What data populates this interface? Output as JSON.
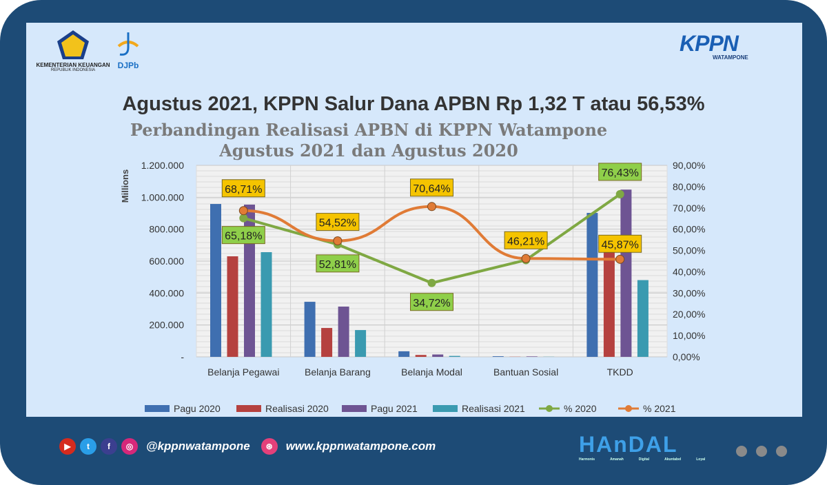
{
  "logos": {
    "kemenkeu_line1": "KEMENTERIAN KEUANGAN",
    "kemenkeu_line2": "REPUBLIK INDONESIA",
    "djpb": "DJPb",
    "kppn": "KPPN",
    "kppn_sub": "WATAMPONE",
    "handal": "HAnDAL",
    "handal_tags": [
      "Harmonis",
      "Amanah",
      "Digital",
      "Akuntabel",
      "Loyal"
    ]
  },
  "headline": "Agustus 2021, KPPN Salur Dana APBN Rp 1,32 T atau 56,53%",
  "footer": {
    "social_handle": "@kppnwatampone",
    "website": "www.kppnwatampone.com",
    "icons": [
      "youtube-icon",
      "twitter-icon",
      "facebook-icon",
      "instagram-icon",
      "dribbble-icon"
    ]
  },
  "chart_data": {
    "type": "bar",
    "title": "Perbandingan Realisasi APBN di KPPN Watampone",
    "subtitle": "Agustus 2021 dan Agustus 2020",
    "ylabel": "Millions",
    "ylim": [
      0,
      1200000
    ],
    "y2lim": [
      0,
      90
    ],
    "yticks": [
      "-",
      "200.000",
      "400.000",
      "600.000",
      "800.000",
      "1.000.000",
      "1.200.000"
    ],
    "y2ticks": [
      "0,00%",
      "10,00%",
      "20,00%",
      "30,00%",
      "40,00%",
      "50,00%",
      "60,00%",
      "70,00%",
      "80,00%",
      "90,00%"
    ],
    "categories": [
      "Belanja Pegawai",
      "Belanja Barang",
      "Belanja Modal",
      "Bantuan Sosial",
      "TKDD"
    ],
    "series": [
      {
        "name": "Pagu 2020",
        "kind": "bar",
        "color": "#3f6fb0",
        "values": [
          958000,
          345000,
          35000,
          4000,
          902000
        ]
      },
      {
        "name": "Realisasi 2020",
        "kind": "bar",
        "color": "#b5413f",
        "values": [
          630000,
          181000,
          12000,
          1000,
          689000
        ]
      },
      {
        "name": "Pagu 2021",
        "kind": "bar",
        "color": "#6e5493",
        "values": [
          954000,
          315000,
          15000,
          3000,
          1048000
        ]
      },
      {
        "name": "Realisasi 2021",
        "kind": "bar",
        "color": "#3a9ab0",
        "values": [
          656000,
          168000,
          6000,
          1000,
          481000
        ]
      },
      {
        "name": "% 2020",
        "kind": "line",
        "axis": "right",
        "color": "#7fa843",
        "values": [
          65.18,
          52.81,
          34.72,
          45.5,
          76.43
        ],
        "labels": [
          "65,18%",
          "52,81%",
          "34,72%",
          "",
          "76,43%"
        ]
      },
      {
        "name": "% 2021",
        "kind": "line",
        "axis": "right",
        "color": "#e07b36",
        "values": [
          68.71,
          54.52,
          70.64,
          46.21,
          45.87
        ],
        "labels": [
          "68,71%",
          "54,52%",
          "70,64%",
          "46,21%",
          "45,87%"
        ]
      }
    ],
    "grid": true,
    "legend": "bottom"
  }
}
